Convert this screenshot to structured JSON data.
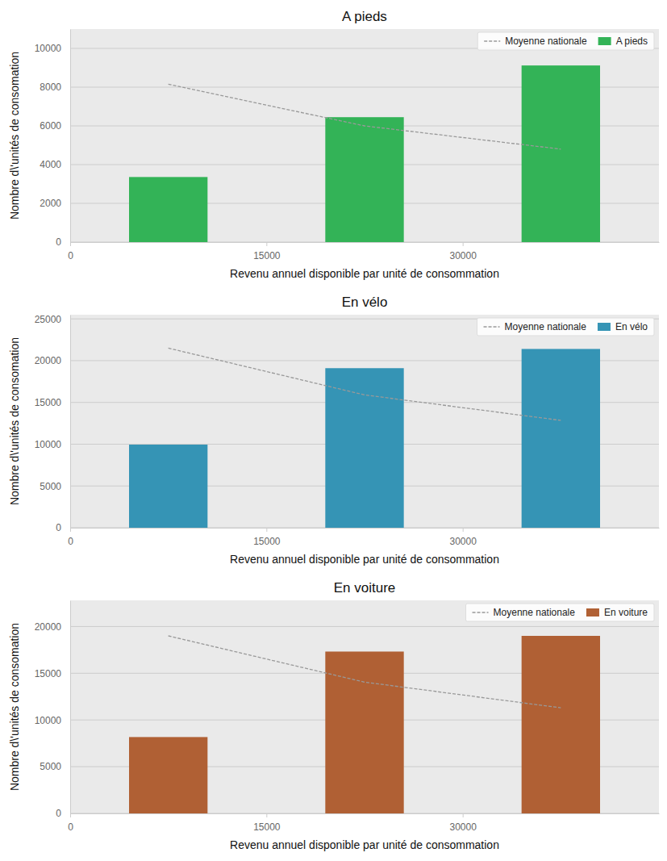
{
  "chart_data": [
    {
      "type": "bar",
      "title": "A pieds",
      "x_label": "Revenu annuel disponible par unité de consommation",
      "y_label": "Nombre d\\'unités de consomation",
      "x": [
        7500,
        22500,
        37500
      ],
      "xlim": [
        0,
        45000
      ],
      "xticks": [
        0,
        15000,
        30000
      ],
      "ylim": [
        0,
        11000
      ],
      "yticks": [
        0,
        2000,
        4000,
        6000,
        8000,
        10000
      ],
      "grid": true,
      "legend": "upper right",
      "series": [
        {
          "name": "Moyenne nationale",
          "type": "line",
          "line_style": "dashed",
          "color": "#999999",
          "values": [
            8150,
            6000,
            4800
          ]
        },
        {
          "name": "A pieds",
          "type": "bar",
          "color": "#33b357",
          "values": [
            3360,
            6450,
            9120
          ]
        }
      ]
    },
    {
      "type": "bar",
      "title": "En vélo",
      "x_label": "Revenu annuel disponible par unité de consommation",
      "y_label": "Nombre d\\'unités de consomation",
      "x": [
        7500,
        22500,
        37500
      ],
      "xlim": [
        0,
        45000
      ],
      "xticks": [
        0,
        15000,
        30000
      ],
      "ylim": [
        0,
        25500
      ],
      "yticks": [
        0,
        5000,
        10000,
        15000,
        20000,
        25000
      ],
      "grid": true,
      "legend": "upper right",
      "series": [
        {
          "name": "Moyenne nationale",
          "type": "line",
          "line_style": "dashed",
          "color": "#999999",
          "values": [
            21500,
            15900,
            12850
          ]
        },
        {
          "name": "En vélo",
          "type": "bar",
          "color": "#3594b5",
          "values": [
            9950,
            19100,
            21400
          ]
        }
      ]
    },
    {
      "type": "bar",
      "title": "En voiture",
      "x_label": "Revenu annuel disponible par unité de consommation",
      "y_label": "Nombre d\\'unités de consomation",
      "x": [
        7500,
        22500,
        37500
      ],
      "xlim": [
        0,
        45000
      ],
      "xticks": [
        0,
        15000,
        30000
      ],
      "ylim": [
        0,
        22800
      ],
      "yticks": [
        0,
        5000,
        10000,
        15000,
        20000
      ],
      "grid": true,
      "legend": "upper right",
      "series": [
        {
          "name": "Moyenne nationale",
          "type": "line",
          "line_style": "dashed",
          "color": "#999999",
          "values": [
            19000,
            14050,
            11300
          ]
        },
        {
          "name": "En voiture",
          "type": "bar",
          "color": "#b06034",
          "values": [
            8170,
            17320,
            19000
          ]
        }
      ]
    }
  ]
}
